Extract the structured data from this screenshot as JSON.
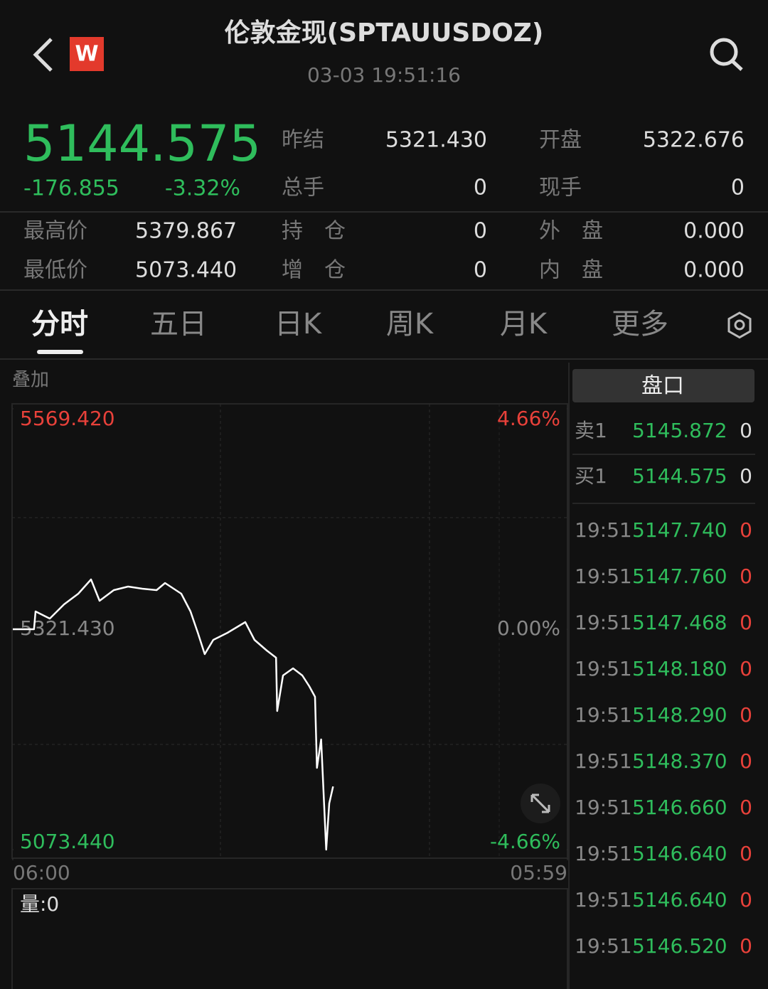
{
  "header": {
    "title": "伦敦金现(SPTAUUSDOZ)",
    "time": "03-03 19:51:16",
    "logo": "W"
  },
  "quote": {
    "price": "5144.575",
    "change": "-176.855",
    "change_pct": "-3.32%",
    "fields": [
      {
        "label": "昨结",
        "value": "5321.430"
      },
      {
        "label": "开盘",
        "value": "5322.676"
      },
      {
        "label": "总手",
        "value": "0"
      },
      {
        "label": "现手",
        "value": "0"
      },
      {
        "label": "最高价",
        "value": "5379.867"
      },
      {
        "label": "持　仓",
        "value": "0"
      },
      {
        "label": "外　盘",
        "value": "0.000"
      },
      {
        "label": "最低价",
        "value": "5073.440"
      },
      {
        "label": "增　仓",
        "value": "0"
      },
      {
        "label": "内　盘",
        "value": "0.000"
      }
    ]
  },
  "tabs": [
    "分时",
    "五日",
    "日K",
    "周K",
    "月K",
    "更多"
  ],
  "overlay": "叠加",
  "chart_data": {
    "type": "line",
    "color": "#ffffff",
    "x": [
      "06:00",
      "06:55",
      "06:59",
      "07:36",
      "08:13",
      "08:50",
      "09:23",
      "09:45",
      "10:22",
      "10:59",
      "11:36",
      "12:13",
      "12:35",
      "13:17",
      "13:41",
      "14:00",
      "14:18",
      "14:40",
      "15:17",
      "16:03",
      "16:27",
      "16:59",
      "17:23",
      "17:26",
      "17:41",
      "18:07",
      "18:31",
      "18:49",
      "19:04",
      "19:09",
      "19:20",
      "19:33",
      "19:41",
      "19:51"
    ],
    "values": [
      5321.43,
      5321.43,
      5341.4,
      5333.4,
      5349.4,
      5361.4,
      5377.4,
      5353.4,
      5365.4,
      5369.4,
      5367.0,
      5365.4,
      5373.4,
      5361.4,
      5341.4,
      5317.4,
      5293.4,
      5309.4,
      5317.4,
      5329.4,
      5309.4,
      5297.4,
      5289.4,
      5229.4,
      5269.4,
      5277.4,
      5269.4,
      5257.4,
      5245.4,
      5165.4,
      5197.4,
      5073.44,
      5125.4,
      5144.575
    ],
    "xticks": [
      "06:00",
      "05:59"
    ],
    "ylim": [
      5073.44,
      5569.42
    ],
    "yticks": [
      {
        "value": 5569.42,
        "label": "5569.420"
      },
      {
        "value": 5321.43,
        "label": "5321.430"
      },
      {
        "value": 5073.44,
        "label": "5073.440"
      }
    ],
    "y2lim": [
      -4.66,
      4.66
    ],
    "y2ticks": [
      {
        "value": 4.66,
        "label": "4.66%"
      },
      {
        "value": 0,
        "label": "0.00%"
      },
      {
        "value": -4.66,
        "label": "-4.66%"
      }
    ]
  },
  "volume_label": "量:0",
  "order_book": {
    "title": "盘口",
    "quotes": [
      {
        "label": "卖1",
        "price": "5145.872",
        "volume": "0"
      },
      {
        "label": "买1",
        "price": "5144.575",
        "volume": "0"
      }
    ],
    "trades": [
      {
        "time": "19:51",
        "price": "5147.740",
        "volume": "0"
      },
      {
        "time": "19:51",
        "price": "5147.760",
        "volume": "0"
      },
      {
        "time": "19:51",
        "price": "5147.468",
        "volume": "0"
      },
      {
        "time": "19:51",
        "price": "5148.180",
        "volume": "0"
      },
      {
        "time": "19:51",
        "price": "5148.290",
        "volume": "0"
      },
      {
        "time": "19:51",
        "price": "5148.370",
        "volume": "0"
      },
      {
        "time": "19:51",
        "price": "5146.660",
        "volume": "0"
      },
      {
        "time": "19:51",
        "price": "5146.640",
        "volume": "0"
      },
      {
        "time": "19:51",
        "price": "5146.640",
        "volume": "0"
      },
      {
        "time": "19:51",
        "price": "5146.520",
        "volume": "0"
      }
    ]
  }
}
